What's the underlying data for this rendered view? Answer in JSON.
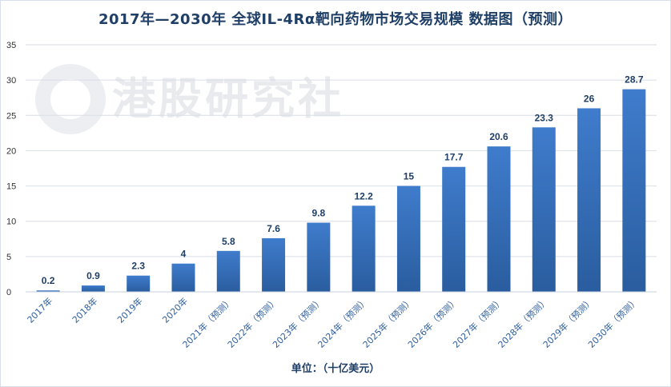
{
  "chart_data": {
    "type": "bar",
    "title": "2017年—2030年 全球IL-4Rα靶向药物市场交易规模 数据图（预测）",
    "xlabel": "单位：（十亿美元）",
    "ylabel": "",
    "ylim": [
      0,
      35
    ],
    "yticks": [
      "0",
      "5",
      "10",
      "15",
      "20",
      "25",
      "30",
      "35"
    ],
    "grid": true,
    "categories": [
      "2017年",
      "2018年",
      "2019年",
      "2020年",
      "2021年（预测）",
      "2022年（预测）",
      "2023年（预测）",
      "2024年（预测）",
      "2025年（预测）",
      "2026年（预测）",
      "2027年（预测）",
      "2028年（预测）",
      "2029年（预测）",
      "2030年（预测）"
    ],
    "values": [
      0.2,
      0.9,
      2.3,
      4,
      5.8,
      7.6,
      9.8,
      12.2,
      15,
      17.7,
      20.6,
      23.3,
      26,
      28.7
    ],
    "value_labels": [
      "0.2",
      "0.9",
      "2.3",
      "4",
      "5.8",
      "7.6",
      "9.8",
      "12.2",
      "15",
      "17.7",
      "20.6",
      "23.3",
      "26",
      "28.7"
    ],
    "bar_color": "#2f68b0",
    "bar_color_light": "#4a86cf"
  },
  "watermark": "港股研究社"
}
